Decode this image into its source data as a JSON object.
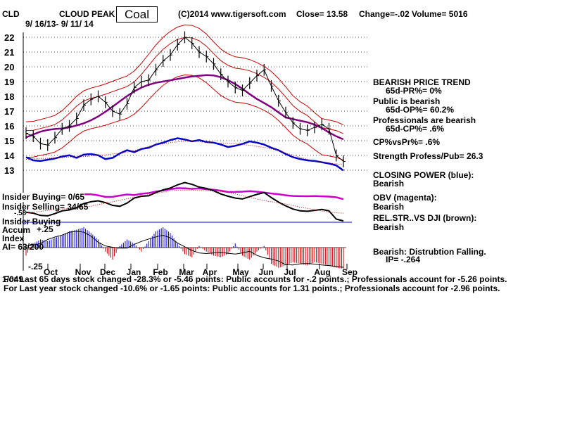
{
  "header": {
    "ticker": "CLD",
    "company": "CLOUD PEAK",
    "sector": "Coal",
    "copyright": "(C)2014 www.tigersoft.com",
    "close": "Close=  13.58",
    "change": "Change=-.02",
    "volume": "Volume= 5016",
    "date_range": "9/ 16/13-  9/ 11/ 14"
  },
  "right_panel": {
    "trend_title": "BEARISH PRICE TREND",
    "pr": "65d-PR%= 0%",
    "public": "Public is bearish",
    "op": "65d-OP%= 60.2%",
    "pros": "Professionals are bearish",
    "cp": "65d-CP%= .6%",
    "cpvspr": "CP%vsPr%=  .6%",
    "strength": "Strength Profess/Pub= 26.3",
    "closing_power": "CLOSING POWER (blue):",
    "closing_power_val": "Bearish",
    "obv": "OBV (magenta):",
    "obv_val": "Bearish",
    "relstr": "REL.STR..VS DJI (brown):",
    "relstr_val": "Bearish",
    "accum": "Bearish: Distrubtion Falling.",
    "ip": "IP= -.264"
  },
  "left_labels": {
    "insider_buying": "Insider Buying= 0/65",
    "insider_selling": "Insider Selling= 34/65",
    "insider_buying2": "Insider Buying",
    "accum": "Accum",
    "accum_plus": "+.25",
    "index": "Index",
    "ai": "AI= 63/200",
    "minus25": "-.25",
    "minus58": "-.58",
    "i_1049": "1/049"
  },
  "footer": {
    "line1": "For Last 65 days stock changed -28.3% or -5.46 points:  Public accounts for -.2 points.;  Professionals account for -5.26 points.",
    "line2": "For Last year stock changed -10.6% or -1.65 points:  Public accounts for  1.31 points.;  Professionals account for -2.96 points."
  },
  "colors": {
    "grid": "#008000",
    "price": "#000000",
    "bands": "#cc0000",
    "ma": "#800080",
    "closing_power": "#0000cc",
    "obv": "#cc00cc",
    "relstr": "#000000",
    "accum_pos": "#0000cc",
    "accum_neg": "#cc0000",
    "insider_line": "#0000cc"
  },
  "chart_data": {
    "type": "line",
    "y_ticks": [
      "22",
      "21",
      "20",
      "19",
      "18",
      "17",
      "16",
      "15",
      "14",
      "13"
    ],
    "ylim": [
      12.5,
      22.5
    ],
    "x_ticks": [
      "Oct",
      "Nov",
      "Dec",
      "Jan",
      "Feb",
      "Mar",
      "Apr",
      "May",
      "Jun",
      "Jul",
      "Aug",
      "Sep"
    ],
    "grid": true,
    "price": [
      15.5,
      15.3,
      14.8,
      14.7,
      15.2,
      15.8,
      16.0,
      16.5,
      17.4,
      17.8,
      18.0,
      17.6,
      17.0,
      16.8,
      17.5,
      18.6,
      19.0,
      19.1,
      19.8,
      20.4,
      20.8,
      21.5,
      22.0,
      21.6,
      21.0,
      20.7,
      20.2,
      19.5,
      19.0,
      18.6,
      18.4,
      18.9,
      19.4,
      19.8,
      18.7,
      17.7,
      16.9,
      16.2,
      15.8,
      15.7,
      15.9,
      16.1,
      15.8,
      14.0,
      13.6
    ],
    "closing_power_level": [
      3.5,
      3.0,
      2.9,
      3.1,
      3.3,
      3.6,
      3.8,
      3.4,
      3.9,
      4.0,
      3.8,
      3.2,
      3.4,
      4.1,
      4.6,
      4.3,
      4.8,
      5.0,
      5.5,
      5.8,
      6.2,
      6.5,
      6.3,
      6.0,
      6.2,
      5.9,
      5.8,
      5.5,
      5.1,
      5.3,
      5.6,
      6.0,
      5.8,
      5.5,
      5.0,
      4.6,
      4.0,
      3.5,
      3.2,
      3.0,
      2.9,
      2.7,
      2.5,
      2.2,
      1.4
    ],
    "accum_index": [
      -0.1,
      0.05,
      0.1,
      0.08,
      0.12,
      0.15,
      0.2,
      0.22,
      0.25,
      0.18,
      0.1,
      -0.05,
      -0.15,
      0.02,
      0.1,
      0.05,
      -0.05,
      0.08,
      0.2,
      0.25,
      0.18,
      0.05,
      -0.08,
      -0.12,
      0.02,
      -0.05,
      -0.1,
      -0.12,
      -0.08,
      0.05,
      -0.1,
      -0.15,
      -0.05,
      0.02,
      -0.2,
      -0.25,
      -0.22,
      -0.18,
      -0.2,
      -0.22,
      -0.18,
      -0.2,
      -0.22,
      -0.25,
      -0.26
    ],
    "acc_ylim": [
      -0.26,
      0.26
    ]
  }
}
